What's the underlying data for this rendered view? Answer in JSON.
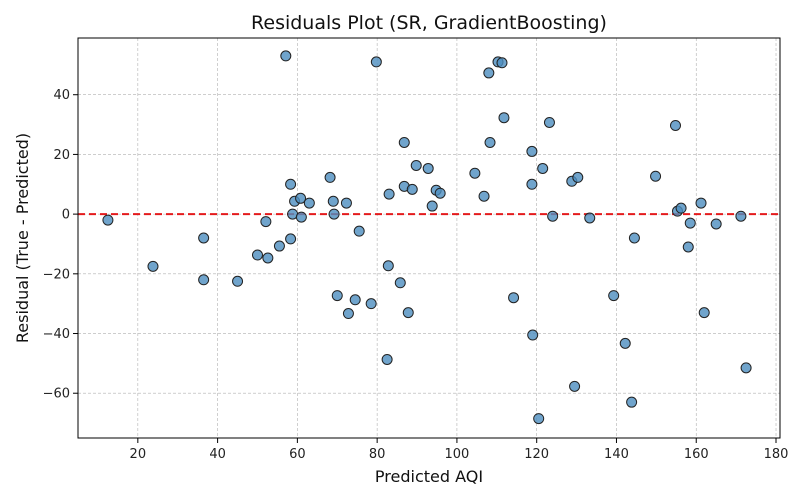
{
  "chart_data": {
    "type": "scatter",
    "title": "Residuals Plot (SR, GradientBoosting)",
    "xlabel": "Predicted AQI",
    "ylabel": "Residual (True - Predicted)",
    "xlim": [
      5,
      181
    ],
    "ylim": [
      -75,
      59
    ],
    "xticks": [
      20,
      40,
      60,
      80,
      100,
      120,
      140,
      160,
      180
    ],
    "yticks": [
      -60,
      -40,
      -20,
      0,
      20,
      40
    ],
    "grid": true,
    "reference_line": {
      "y": 0,
      "color": "#e41a1c",
      "style": "dashed"
    },
    "marker_color": "#4c8dbf",
    "points": [
      [
        12.5,
        -2
      ],
      [
        23.8,
        -17.5
      ],
      [
        36.5,
        -8
      ],
      [
        36.5,
        -22
      ],
      [
        45,
        -22.5
      ],
      [
        50,
        -13.7
      ],
      [
        52.1,
        -2.5
      ],
      [
        52.6,
        -14.7
      ],
      [
        55.5,
        -10.7
      ],
      [
        57.1,
        53
      ],
      [
        58.3,
        10
      ],
      [
        58.3,
        -8.3
      ],
      [
        58.8,
        0
      ],
      [
        59.3,
        4.3
      ],
      [
        60.8,
        5.3
      ],
      [
        61,
        -1
      ],
      [
        63,
        3.7
      ],
      [
        68.2,
        12.3
      ],
      [
        69,
        4.3
      ],
      [
        69.2,
        0
      ],
      [
        70,
        -27.3
      ],
      [
        72.3,
        3.7
      ],
      [
        72.8,
        -33.3
      ],
      [
        74.5,
        -28.7
      ],
      [
        75.5,
        -5.7
      ],
      [
        78.5,
        -30
      ],
      [
        79.8,
        51
      ],
      [
        82.5,
        -48.7
      ],
      [
        82.8,
        -17.3
      ],
      [
        83,
        6.7
      ],
      [
        85.8,
        -23
      ],
      [
        86.8,
        24
      ],
      [
        86.8,
        9.3
      ],
      [
        87.8,
        -33
      ],
      [
        88.8,
        8.3
      ],
      [
        89.8,
        16.3
      ],
      [
        92.8,
        15.3
      ],
      [
        93.8,
        2.7
      ],
      [
        94.8,
        8
      ],
      [
        95.8,
        7
      ],
      [
        104.5,
        13.7
      ],
      [
        106.8,
        6
      ],
      [
        108,
        47.3
      ],
      [
        108.3,
        24
      ],
      [
        110.3,
        51
      ],
      [
        111.3,
        50.7
      ],
      [
        111.8,
        32.3
      ],
      [
        114.2,
        -28
      ],
      [
        118.8,
        21
      ],
      [
        118.8,
        10
      ],
      [
        119,
        -40.5
      ],
      [
        120.5,
        -68.5
      ],
      [
        121.5,
        15.3
      ],
      [
        123.2,
        30.7
      ],
      [
        124,
        -0.7
      ],
      [
        128.8,
        11
      ],
      [
        129.5,
        -57.7
      ],
      [
        130.3,
        12.3
      ],
      [
        133.3,
        -1.3
      ],
      [
        139.3,
        -27.3
      ],
      [
        142.2,
        -43.3
      ],
      [
        143.8,
        -63
      ],
      [
        144.5,
        -8
      ],
      [
        149.8,
        12.7
      ],
      [
        154.8,
        29.7
      ],
      [
        155.3,
        1
      ],
      [
        156.2,
        2
      ],
      [
        158,
        -11
      ],
      [
        158.5,
        -3
      ],
      [
        161.2,
        3.7
      ],
      [
        162,
        -33
      ],
      [
        165,
        -3.3
      ],
      [
        171.2,
        -0.7
      ],
      [
        172.5,
        -51.5
      ]
    ]
  }
}
